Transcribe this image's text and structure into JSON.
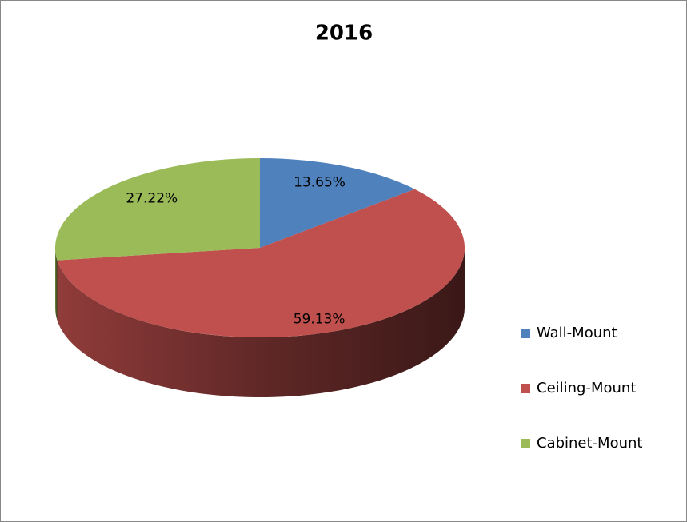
{
  "chart_data": {
    "type": "pie",
    "title": "2016",
    "categories": [
      "Wall-Mount",
      "Ceiling-Mount",
      "Cabinet-Mount"
    ],
    "values": [
      13.65,
      59.13,
      27.22
    ],
    "value_labels": [
      "13.65%",
      "59.13%",
      "27.22%"
    ],
    "colors": [
      "#4f81bd",
      "#c0504d",
      "#9bbb59"
    ],
    "legend": "right"
  }
}
